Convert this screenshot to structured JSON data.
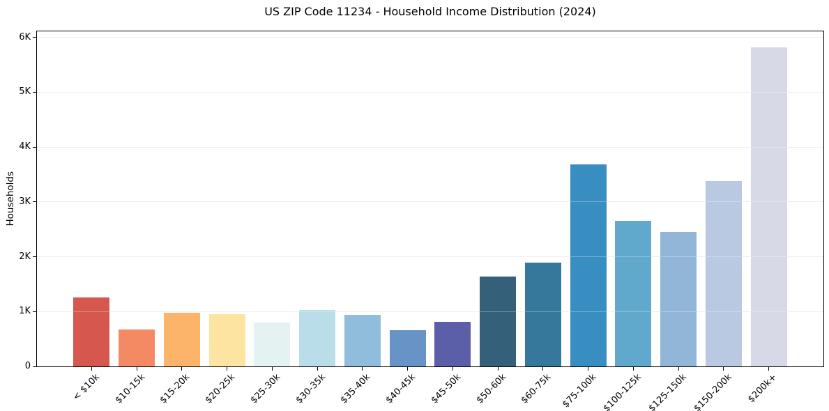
{
  "chart_data": {
    "type": "bar",
    "title": "US ZIP Code 11234 - Household Income Distribution (2024)",
    "xlabel": "",
    "ylabel": "Households",
    "categories": [
      "< $10k",
      "$10-15k",
      "$15-20k",
      "$20-25k",
      "$25-30k",
      "$30-35k",
      "$35-40k",
      "$40-45k",
      "$45-50k",
      "$50-60k",
      "$60-75k",
      "$75-100k",
      "$100-125k",
      "$125-150k",
      "$150-200k",
      "$200k+"
    ],
    "values": [
      1255,
      675,
      975,
      950,
      805,
      1025,
      945,
      665,
      810,
      1640,
      1895,
      3690,
      2660,
      2455,
      3375,
      5820
    ],
    "bar_colors": [
      "#d6574e",
      "#f48a63",
      "#fcb36a",
      "#fde4a0",
      "#e4f2f2",
      "#b9dde9",
      "#91bddc",
      "#6793c7",
      "#5b5fa8",
      "#34607a",
      "#35789b",
      "#398ec1",
      "#60a8cc",
      "#92b6d8",
      "#b9c9e2",
      "#d7d9e7"
    ],
    "ytick_values": [
      0,
      1000,
      2000,
      3000,
      4000,
      5000,
      6000
    ],
    "ytick_labels": [
      "0",
      "1K",
      "2K",
      "3K",
      "4K",
      "5K",
      "6K"
    ],
    "ylim": [
      0,
      6110
    ],
    "xtick_rotation_deg": 45,
    "grid": "horizontal",
    "grid_color": "#e7e7ea",
    "axis_color": "#000000",
    "background_color": "#ffffff",
    "legend": "none"
  }
}
